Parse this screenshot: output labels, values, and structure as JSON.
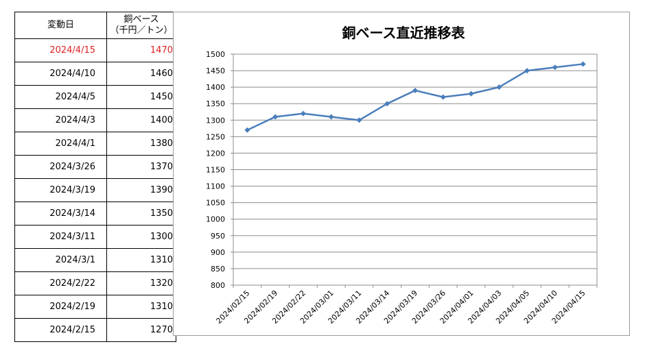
{
  "table": {
    "header_date": "変動日",
    "header_price_line1": "銅ベース",
    "header_price_line2": "（千円／トン）",
    "rows": [
      {
        "date": "2024/4/15",
        "price": "1470",
        "highlight": true
      },
      {
        "date": "2024/4/10",
        "price": "1460"
      },
      {
        "date": "2024/4/5",
        "price": "1450"
      },
      {
        "date": "2024/4/3",
        "price": "1400"
      },
      {
        "date": "2024/4/1",
        "price": "1380"
      },
      {
        "date": "2024/3/26",
        "price": "1370"
      },
      {
        "date": "2024/3/19",
        "price": "1390"
      },
      {
        "date": "2024/3/14",
        "price": "1350"
      },
      {
        "date": "2024/3/11",
        "price": "1300"
      },
      {
        "date": "2024/3/1",
        "price": "1310"
      },
      {
        "date": "2024/2/22",
        "price": "1320"
      },
      {
        "date": "2024/2/19",
        "price": "1310"
      },
      {
        "date": "2024/2/15",
        "price": "1270"
      }
    ],
    "highlight_color": "#e02020"
  },
  "chart_data": {
    "type": "line",
    "title": "銅ベース直近推移表",
    "xlabel": "",
    "ylabel": "",
    "categories": [
      "2024/02/15",
      "2024/02/19",
      "2024/02/22",
      "2024/03/01",
      "2024/03/11",
      "2024/03/14",
      "2024/03/19",
      "2024/03/26",
      "2024/04/01",
      "2024/04/03",
      "2024/04/05",
      "2024/04/10",
      "2024/04/15"
    ],
    "series": [
      {
        "values": [
          1270,
          1310,
          1320,
          1310,
          1300,
          1350,
          1390,
          1370,
          1380,
          1400,
          1450,
          1460,
          1470
        ]
      }
    ],
    "ylim": [
      800,
      1500
    ],
    "ytick_step": 50,
    "grid": true,
    "legend": "none",
    "line_color": "#4a7ebb"
  }
}
